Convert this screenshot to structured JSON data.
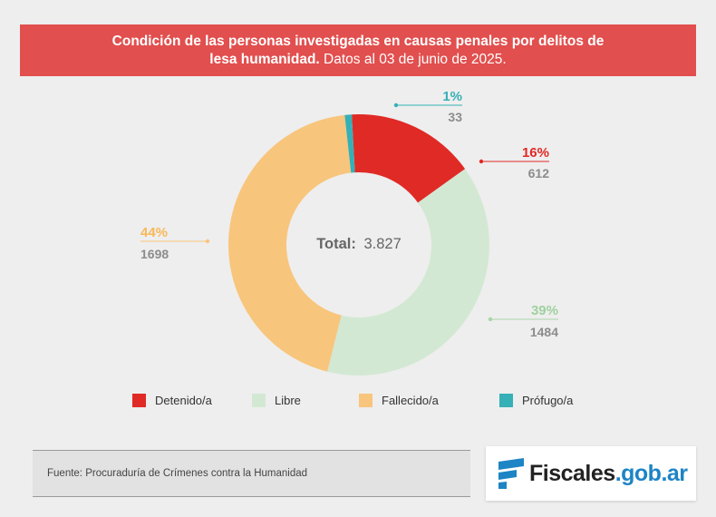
{
  "header": {
    "title_bold_line1": "Condición de las personas investigadas en causas penales por delitos de",
    "title_bold_line2": "lesa humanidad.",
    "title_light_line2": "Datos al 03 de junio de 2025."
  },
  "chart_data": {
    "type": "pie",
    "variant": "donut",
    "center_label": "Total:",
    "center_value": "3.827",
    "total": 3827,
    "slices": [
      {
        "name": "Detenido/a",
        "value": 612,
        "percent_label": "16%",
        "value_label": "612",
        "color": "#e02a26"
      },
      {
        "name": "Libre",
        "value": 1484,
        "percent_label": "39%",
        "value_label": "1484",
        "color": "#d3e8d3"
      },
      {
        "name": "Fallecido/a",
        "value": 1698,
        "percent_label": "44%",
        "value_label": "1698",
        "color": "#f8c57c"
      },
      {
        "name": "Prófugo/a",
        "value": 33,
        "percent_label": "1%",
        "value_label": "33",
        "color": "#35b0b6"
      }
    ],
    "legend_placement": "bottom"
  },
  "footer": {
    "source": "Fuente: Procuraduría de Crímenes contra la Humanidad",
    "logo_part1": "Fiscales",
    "logo_part2": ".gob.ar"
  },
  "colors": {
    "banner": "#e14f4e",
    "label_value": "#8c8c8c",
    "logo_blue": "#1d84c5"
  }
}
